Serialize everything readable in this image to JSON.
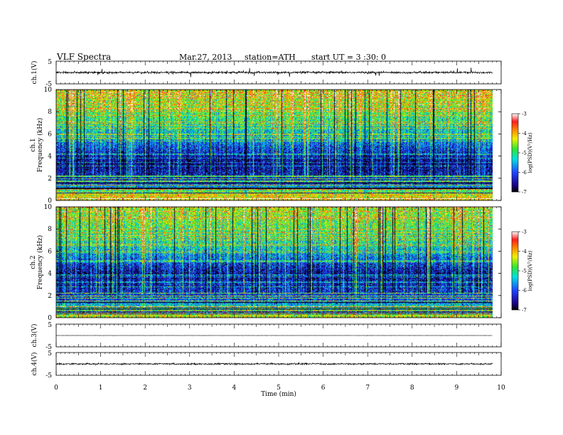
{
  "header": {
    "title": "VLF  Spectra",
    "date": "Mar.27, 2013",
    "station": "station=ATH",
    "start": "start  UT  =   3  :30: 0"
  },
  "chart_data": [
    {
      "id": "ch1_wave",
      "type": "line",
      "ylabel": "ch.1(V)",
      "ylim": [
        -5,
        5
      ],
      "y_ticks": [
        "5",
        "-5"
      ],
      "baseline": 0,
      "description_values": {
        "noise_amplitude_typ": 0.5,
        "spike_amplitude_max": 2.5
      }
    },
    {
      "id": "ch1_spec",
      "type": "heatmap",
      "ylabel": "ch.1\nFrequency  (kHz)",
      "ylabel_lines": [
        "ch.1",
        "Frequency  (kHz)"
      ],
      "ylim": [
        0,
        10
      ],
      "y_ticks": [
        "0",
        "2",
        "4",
        "6",
        "8",
        "10"
      ],
      "xlim": [
        0,
        9.8
      ],
      "colorbar": {
        "label": "log(PSD)(V²/Hz)",
        "range": [
          -7,
          -3
        ],
        "ticks": [
          "-3",
          "-4",
          "-5",
          "-6",
          "-7"
        ]
      },
      "level_profile": [
        {
          "f_khz": 0.5,
          "log_psd": -4.2
        },
        {
          "f_khz": 1.5,
          "log_psd": -6.2
        },
        {
          "f_khz": 3.5,
          "log_psd": -6.6
        },
        {
          "f_khz": 6.0,
          "log_psd": -5.4
        },
        {
          "f_khz": 8.5,
          "log_psd": -4.6
        },
        {
          "f_khz": 10.0,
          "log_psd": -4.3
        }
      ]
    },
    {
      "id": "ch2_spec",
      "type": "heatmap",
      "ylabel_lines": [
        "ch.2",
        "Frequency  (kHz)"
      ],
      "ylim": [
        0,
        10
      ],
      "y_ticks": [
        "0",
        "2",
        "4",
        "6",
        "8",
        "10"
      ],
      "xlim": [
        0,
        9.8
      ],
      "colorbar": {
        "label": "log(PSD)(V²/Hz)",
        "range": [
          -7,
          -3
        ],
        "ticks": [
          "-3",
          "-4",
          "-5",
          "-6",
          "-7"
        ]
      },
      "level_profile": [
        {
          "f_khz": 0.5,
          "log_psd": -4.4
        },
        {
          "f_khz": 1.5,
          "log_psd": -6.0
        },
        {
          "f_khz": 4.0,
          "log_psd": -6.5
        },
        {
          "f_khz": 6.5,
          "log_psd": -5.2
        },
        {
          "f_khz": 8.5,
          "log_psd": -4.7
        },
        {
          "f_khz": 10.0,
          "log_psd": -4.5
        }
      ]
    },
    {
      "id": "ch3_wave",
      "type": "line",
      "ylabel": "ch.3(V)",
      "ylim": [
        -5,
        5
      ],
      "y_ticks": [
        "5",
        "-5"
      ],
      "baseline": 0,
      "description_values": {
        "noise_amplitude_typ": 0.02
      }
    },
    {
      "id": "ch4_wave",
      "type": "line",
      "ylabel": "ch.4(V)",
      "ylim": [
        -5,
        5
      ],
      "y_ticks": [
        "5",
        "-5"
      ],
      "baseline": 0,
      "description_values": {
        "noise_amplitude_typ": 0.35
      }
    }
  ],
  "x_axis": {
    "label": "Time  (min)",
    "xlim": [
      0,
      10
    ],
    "ticks": [
      "0",
      "1",
      "2",
      "3",
      "4",
      "5",
      "6",
      "7",
      "8",
      "9",
      "10"
    ],
    "data_end_min": 9.8
  }
}
